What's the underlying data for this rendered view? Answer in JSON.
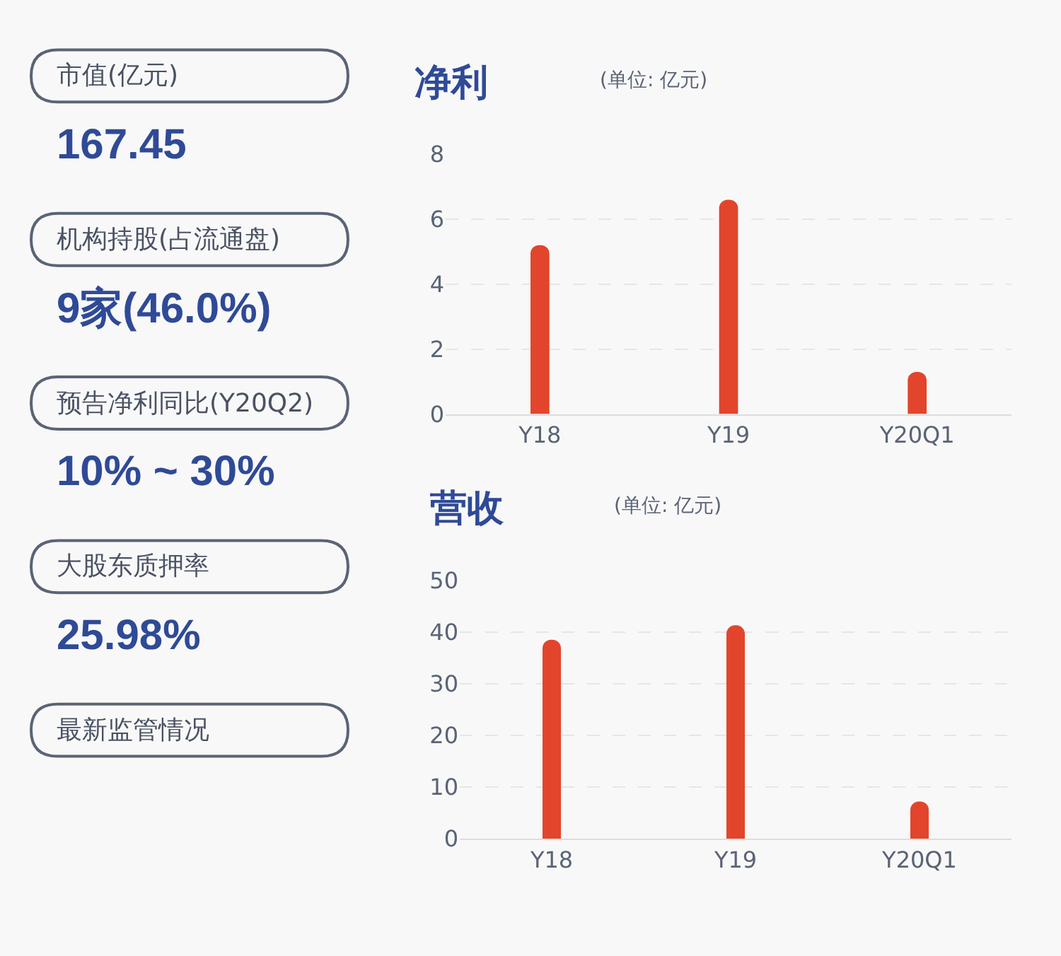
{
  "chart_data": [
    {
      "type": "other",
      "annotations": [
        "市值(亿元)",
        "167.45",
        "机构持股(占流通盘)",
        "9家(46.0%)",
        "预告净利同比(Y20Q2)",
        "10% ~ 30%",
        "大股东质押率",
        "25.98%",
        "最新监管情况"
      ]
    },
    {
      "type": "bar",
      "title": "净利",
      "subtitle": "(单位: 亿元)",
      "categories": [
        "Y18",
        "Y19",
        "Y20Q1"
      ],
      "values": [
        5.2,
        6.6,
        1.3
      ],
      "color": "#e2452b",
      "ylim": [
        0,
        8
      ],
      "yticks": [
        0,
        2,
        4,
        6,
        8
      ],
      "grid": "y"
    },
    {
      "type": "bar",
      "title": "营收",
      "subtitle": "(单位: 亿元)",
      "categories": [
        "Y18",
        "Y19",
        "Y20Q1"
      ],
      "values": [
        38.5,
        41.3,
        7.2
      ],
      "color": "#e2452b",
      "ylim": [
        0,
        50
      ],
      "yticks": [
        0,
        10,
        20,
        30,
        40,
        50
      ],
      "grid": "y"
    }
  ]
}
